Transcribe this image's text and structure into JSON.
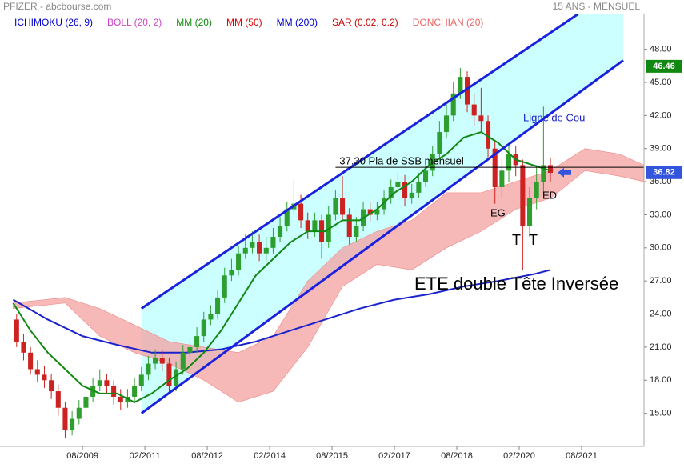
{
  "chart_data": {
    "type": "candlestick",
    "title": "PFIZER - abcbourse.com",
    "subtitle": "15 ANS - MENSUEL",
    "indicators": [
      {
        "name": "ICHIMOKU (26, 9)",
        "color": "#0000cc"
      },
      {
        "name": "BOLL (20, 2)",
        "color": "#cc44cc"
      },
      {
        "name": "MM (20)",
        "color": "#118811"
      },
      {
        "name": "MM (50)",
        "color": "#dd0000"
      },
      {
        "name": "MM (200)",
        "color": "#0000cc"
      },
      {
        "name": "SAR (0.02, 0.2)",
        "color": "#cc0000"
      },
      {
        "name": "DONCHIAN (20)",
        "color": "#ee6666"
      }
    ],
    "xlim": [
      91.2,
      277.0
    ],
    "xticks": [
      {
        "value": 115,
        "label": "08/2009"
      },
      {
        "value": 133,
        "label": "02/2011"
      },
      {
        "value": 151,
        "label": "08/2012"
      },
      {
        "value": 169,
        "label": "02/2014"
      },
      {
        "value": 187,
        "label": "08/2015"
      },
      {
        "value": 205,
        "label": "02/2017"
      },
      {
        "value": 223,
        "label": "08/2018"
      },
      {
        "value": 241,
        "label": "02/2020"
      },
      {
        "value": 259,
        "label": "08/2021"
      }
    ],
    "ylim": [
      12,
      52.47
    ],
    "yticks": [
      {
        "value": 15,
        "label": "15.00"
      },
      {
        "value": 18,
        "label": "18.00"
      },
      {
        "value": 21,
        "label": "21.00"
      },
      {
        "value": 24,
        "label": "24.00"
      },
      {
        "value": 27,
        "label": "27.00"
      },
      {
        "value": 30,
        "label": "30.00"
      },
      {
        "value": 33,
        "label": "33.00"
      },
      {
        "value": 36,
        "label": "36.00"
      },
      {
        "value": 39,
        "label": "39.00"
      },
      {
        "value": 42,
        "label": "42.00"
      },
      {
        "value": 45,
        "label": "45.00"
      },
      {
        "value": 48,
        "label": "48.00"
      }
    ],
    "up_color": "#2e9e2e",
    "down_color": "#cc2222",
    "candles": [
      [
        96,
        23.5,
        24.0,
        21.0,
        21.5
      ],
      [
        98,
        21.5,
        22.2,
        19.8,
        20.5
      ],
      [
        100,
        20.5,
        21.0,
        18.5,
        19.0
      ],
      [
        102,
        19.0,
        19.8,
        17.8,
        18.5
      ],
      [
        104,
        18.5,
        19.3,
        17.3,
        18.0
      ],
      [
        106,
        18.0,
        18.6,
        16.3,
        17.0
      ],
      [
        108,
        17.0,
        17.6,
        14.8,
        15.5
      ],
      [
        110,
        15.5,
        16.0,
        12.8,
        13.5
      ],
      [
        112,
        13.5,
        15.2,
        13.0,
        14.5
      ],
      [
        114,
        14.5,
        16.2,
        14.0,
        15.5
      ],
      [
        116,
        15.5,
        17.2,
        15.0,
        16.5
      ],
      [
        118,
        16.5,
        18.2,
        16.0,
        17.5
      ],
      [
        120,
        17.5,
        19.0,
        17.0,
        18.0
      ],
      [
        122,
        18.0,
        18.6,
        16.8,
        17.5
      ],
      [
        124,
        17.5,
        18.0,
        15.8,
        16.5
      ],
      [
        126,
        16.5,
        17.2,
        15.3,
        16.0
      ],
      [
        128,
        16.0,
        17.2,
        15.5,
        16.5
      ],
      [
        130,
        16.5,
        18.2,
        16.0,
        17.5
      ],
      [
        132,
        17.5,
        19.2,
        17.0,
        18.5
      ],
      [
        134,
        18.5,
        20.2,
        18.0,
        19.5
      ],
      [
        136,
        19.5,
        20.8,
        19.0,
        20.0
      ],
      [
        138,
        20.0,
        20.8,
        18.8,
        19.5
      ],
      [
        140,
        19.5,
        20.0,
        16.8,
        17.5
      ],
      [
        142,
        17.5,
        19.7,
        17.0,
        19.0
      ],
      [
        144,
        19.0,
        21.2,
        18.5,
        20.5
      ],
      [
        146,
        20.5,
        21.8,
        20.0,
        21.0
      ],
      [
        148,
        21.0,
        22.8,
        20.5,
        22.0
      ],
      [
        150,
        22.0,
        24.2,
        21.5,
        23.5
      ],
      [
        152,
        23.5,
        24.8,
        23.0,
        24.0
      ],
      [
        154,
        24.0,
        26.2,
        23.5,
        25.5
      ],
      [
        156,
        25.5,
        28.2,
        25.0,
        27.5
      ],
      [
        158,
        27.5,
        29.0,
        27.0,
        28.0
      ],
      [
        160,
        28.0,
        30.2,
        27.5,
        29.5
      ],
      [
        162,
        29.5,
        31.2,
        29.0,
        30.0
      ],
      [
        164,
        30.0,
        31.5,
        29.5,
        30.5
      ],
      [
        166,
        30.5,
        31.2,
        28.8,
        29.5
      ],
      [
        168,
        29.5,
        31.0,
        28.8,
        30.0
      ],
      [
        170,
        30.0,
        31.8,
        29.5,
        31.0
      ],
      [
        172,
        31.0,
        32.8,
        30.5,
        32.0
      ],
      [
        174,
        32.0,
        34.2,
        31.5,
        33.5
      ],
      [
        176,
        33.5,
        36.2,
        33.0,
        34.0
      ],
      [
        178,
        34.0,
        34.8,
        31.8,
        32.5
      ],
      [
        180,
        32.5,
        33.2,
        30.8,
        31.5
      ],
      [
        182,
        31.5,
        33.2,
        31.0,
        32.5
      ],
      [
        184,
        32.5,
        33.0,
        29.0,
        30.5
      ],
      [
        186,
        30.5,
        33.8,
        30.0,
        33.0
      ],
      [
        188,
        33.0,
        35.2,
        32.5,
        34.5
      ],
      [
        190,
        34.5,
        36.5,
        32.5,
        33.0
      ],
      [
        192,
        33.0,
        33.6,
        30.3,
        31.0
      ],
      [
        194,
        31.0,
        32.8,
        30.5,
        32.0
      ],
      [
        196,
        32.0,
        34.2,
        31.5,
        33.5
      ],
      [
        198,
        33.5,
        34.2,
        32.3,
        33.0
      ],
      [
        200,
        33.0,
        34.2,
        32.5,
        33.5
      ],
      [
        202,
        33.5,
        35.2,
        33.0,
        34.5
      ],
      [
        204,
        34.5,
        36.2,
        34.0,
        35.5
      ],
      [
        206,
        35.5,
        36.8,
        35.0,
        36.0
      ],
      [
        208,
        36.0,
        36.6,
        33.8,
        34.5
      ],
      [
        210,
        34.5,
        35.8,
        34.0,
        35.0
      ],
      [
        212,
        35.0,
        36.8,
        34.5,
        36.0
      ],
      [
        214,
        36.0,
        37.8,
        35.5,
        37.0
      ],
      [
        216,
        37.0,
        39.2,
        36.5,
        38.5
      ],
      [
        218,
        38.5,
        41.5,
        38.0,
        40.5
      ],
      [
        220,
        40.5,
        43.0,
        40.0,
        42.0
      ],
      [
        222,
        42.0,
        45.0,
        41.5,
        44.0
      ],
      [
        224,
        44.0,
        46.3,
        43.5,
        45.5
      ],
      [
        226,
        45.5,
        46.0,
        42.3,
        43.0
      ],
      [
        228,
        43.0,
        44.0,
        41.0,
        42.0
      ],
      [
        230,
        42.0,
        44.5,
        40.5,
        41.5
      ],
      [
        232,
        41.5,
        42.0,
        38.2,
        39.0
      ],
      [
        234,
        39.0,
        39.8,
        34.0,
        35.5
      ],
      [
        236,
        35.5,
        38.0,
        34.5,
        37.0
      ],
      [
        238,
        37.0,
        39.5,
        36.0,
        38.5
      ],
      [
        240,
        38.5,
        39.2,
        36.5,
        37.5
      ],
      [
        242,
        37.5,
        38.0,
        28.0,
        32.0
      ],
      [
        244,
        32.0,
        35.5,
        31.0,
        34.5
      ],
      [
        246,
        34.5,
        37.5,
        33.5,
        36.0
      ],
      [
        248,
        36.0,
        42.8,
        35.0,
        37.5
      ],
      [
        250,
        37.5,
        38.2,
        36.0,
        36.8
      ]
    ],
    "cloud": {
      "color": "#f4a0a0",
      "x": [
        95,
        110,
        120,
        130,
        140,
        150,
        160,
        170,
        180,
        190,
        200,
        210,
        220,
        230,
        240,
        250,
        260,
        270,
        277
      ],
      "upper": [
        25,
        25.5,
        24.5,
        23,
        21.5,
        21,
        20.5,
        22,
        27,
        30,
        31.5,
        32.5,
        35,
        35,
        36,
        37,
        39,
        38.5,
        37.5
      ],
      "lower": [
        24.5,
        25,
        22,
        20.5,
        19.5,
        18,
        16,
        17,
        21,
        26.5,
        28.5,
        28,
        30,
        31.5,
        33.5,
        34.5,
        37,
        36.5,
        36
      ]
    },
    "mm20": {
      "color": "#118811",
      "x": [
        95,
        100,
        105,
        110,
        115,
        120,
        125,
        130,
        135,
        140,
        145,
        150,
        155,
        160,
        165,
        170,
        175,
        180,
        185,
        190,
        195,
        200,
        205,
        210,
        215,
        220,
        225,
        230,
        235,
        240,
        245,
        250
      ],
      "values": [
        25.0,
        22.5,
        20.5,
        19.0,
        17.5,
        16.8,
        16.8,
        16.0,
        16.8,
        18.0,
        19.0,
        20.5,
        22.5,
        25.0,
        27.5,
        29.0,
        30.5,
        31.5,
        31.5,
        32.5,
        32.5,
        33.5,
        35.0,
        36.0,
        37.5,
        38.5,
        40.0,
        40.5,
        39.5,
        38.0,
        37.5,
        37.0
      ]
    },
    "mm200": {
      "color": "#1a22cc",
      "x": [
        95,
        105,
        115,
        125,
        135,
        145,
        155,
        165,
        175,
        185,
        195,
        205,
        215,
        225,
        235,
        245,
        250
      ],
      "values": [
        25.3,
        23.5,
        22.0,
        21.2,
        20.5,
        20.5,
        20.8,
        21.5,
        22.5,
        23.5,
        24.5,
        25.3,
        25.8,
        26.5,
        27.0,
        27.6,
        28.0
      ]
    },
    "channel": {
      "color": "#1a22dd",
      "fill": "#ccffff",
      "upper": {
        "x": [
          132,
          258
        ],
        "values": [
          24.5,
          51.2
        ]
      },
      "lower": {
        "x": [
          132,
          271
        ],
        "values": [
          15.0,
          47.0
        ]
      }
    },
    "ssb": {
      "value": 37.3,
      "label": "37.30 Pla de SSB mensuel",
      "x": [
        188,
        277
      ]
    },
    "price_tags": [
      {
        "value": 46.46,
        "color": "#118811"
      },
      {
        "value": 36.82,
        "color": "#3355dd"
      }
    ],
    "annotations": [
      "Ligne de Cou",
      "EG",
      "ED",
      "T",
      "T",
      "ETE double Tête Inversée"
    ]
  }
}
